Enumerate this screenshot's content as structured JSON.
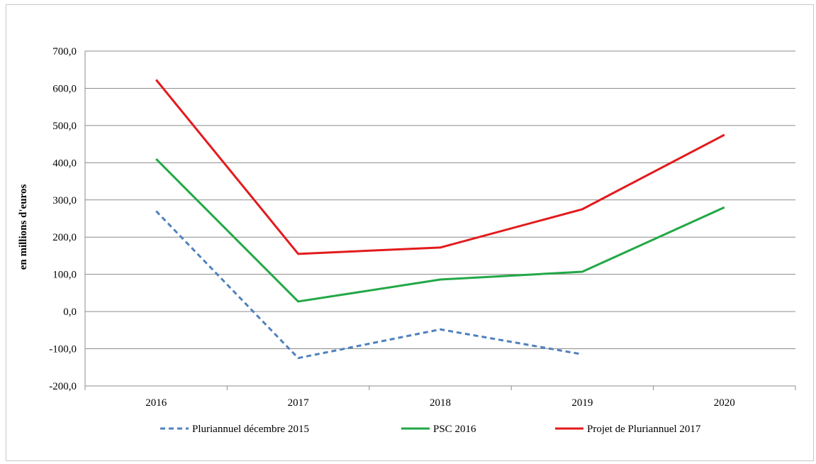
{
  "chart_data": {
    "type": "line",
    "categories": [
      "2016",
      "2017",
      "2018",
      "2019",
      "2020"
    ],
    "ylabel": "en millions d'euros",
    "ylim": [
      -200,
      700
    ],
    "yticks": [
      "-200,0",
      "-100,0",
      "0,0",
      "100,0",
      "200,0",
      "300,0",
      "400,0",
      "500,0",
      "600,0",
      "700,0"
    ],
    "grid": true,
    "legend_position": "bottom",
    "series": [
      {
        "name": "Pluriannuel décembre 2015",
        "values": [
          270,
          -125,
          -48,
          -115,
          null
        ],
        "color": "#4f81bd",
        "dash": "dashed"
      },
      {
        "name": "PSC 2016",
        "values": [
          410,
          27,
          86,
          107,
          280
        ],
        "color": "#22a846",
        "dash": "solid"
      },
      {
        "name": "Projet de Pluriannuel 2017",
        "values": [
          623,
          155,
          172,
          275,
          475
        ],
        "color": "#e31a1c",
        "dash": "solid"
      }
    ]
  }
}
